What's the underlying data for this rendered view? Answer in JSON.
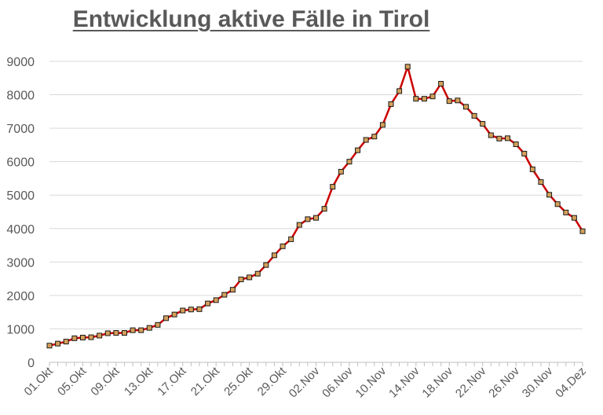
{
  "chart_data": {
    "type": "line",
    "title": "Entwicklung aktive Fälle in Tirol",
    "xlabel": "",
    "ylabel": "",
    "ylim": [
      0,
      9000
    ],
    "yticks": [
      0,
      1000,
      2000,
      3000,
      4000,
      5000,
      6000,
      7000,
      8000,
      9000
    ],
    "grid": true,
    "legend": "none",
    "colors": {
      "line": "#cc0000",
      "marker_fill": "#d4a05a",
      "marker_edge": "#1a1a1a",
      "grid": "#d9d9d9",
      "axis": "#bfbfbf",
      "text": "#595959"
    },
    "x": [
      "01.Okt",
      "02.Okt",
      "03.Okt",
      "04.Okt",
      "05.Okt",
      "06.Okt",
      "07.Okt",
      "08.Okt",
      "09.Okt",
      "10.Okt",
      "11.Okt",
      "12.Okt",
      "13.Okt",
      "14.Okt",
      "15.Okt",
      "16.Okt",
      "17.Okt",
      "18.Okt",
      "19.Okt",
      "20.Okt",
      "21.Okt",
      "22.Okt",
      "23.Okt",
      "24.Okt",
      "25.Okt",
      "26.Okt",
      "27.Okt",
      "28.Okt",
      "29.Okt",
      "30.Okt",
      "31.Okt",
      "01.Nov",
      "02.Nov",
      "03.Nov",
      "04.Nov",
      "05.Nov",
      "06.Nov",
      "07.Nov",
      "08.Nov",
      "09.Nov",
      "10.Nov",
      "11.Nov",
      "12.Nov",
      "13.Nov",
      "14.Nov",
      "15.Nov",
      "16.Nov",
      "17.Nov",
      "18.Nov",
      "19.Nov",
      "20.Nov",
      "21.Nov",
      "22.Nov",
      "23.Nov",
      "24.Nov",
      "25.Nov",
      "26.Nov",
      "27.Nov",
      "28.Nov",
      "29.Nov",
      "30.Nov",
      "01.Dez",
      "02.Dez",
      "03.Dez",
      "04.Dez"
    ],
    "xtick_labels": [
      "01.Okt",
      "05.Okt",
      "09.Okt",
      "13.Okt",
      "17.Okt",
      "21.Okt",
      "25.Okt",
      "29.Okt",
      "02.Nov",
      "06.Nov",
      "10.Nov",
      "14.Nov",
      "18.Nov",
      "22.Nov",
      "26.Nov",
      "30.Nov",
      "04.Dez"
    ],
    "values": [
      500,
      560,
      620,
      720,
      740,
      750,
      800,
      870,
      880,
      880,
      960,
      960,
      1030,
      1120,
      1320,
      1430,
      1550,
      1580,
      1590,
      1760,
      1860,
      2020,
      2170,
      2480,
      2540,
      2650,
      2910,
      3200,
      3470,
      3680,
      4110,
      4280,
      4320,
      4590,
      5250,
      5700,
      6000,
      6340,
      6650,
      6750,
      7100,
      7720,
      8110,
      8840,
      7880,
      7880,
      7950,
      8330,
      7810,
      7830,
      7640,
      7370,
      7130,
      6790,
      6690,
      6700,
      6520,
      6240,
      5770,
      5390,
      5010,
      4730,
      4480,
      4320,
      3920
    ]
  }
}
